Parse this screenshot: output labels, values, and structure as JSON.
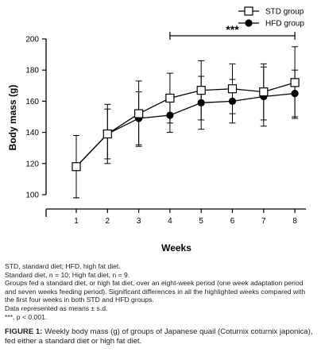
{
  "chart_data": {
    "type": "line",
    "x": [
      1,
      2,
      3,
      4,
      5,
      6,
      7,
      8
    ],
    "xlabel": "Weeks",
    "ylabel": "Body mass (g)",
    "ylim": [
      100,
      200
    ],
    "yticks": [
      100,
      120,
      140,
      160,
      180,
      200
    ],
    "xticks": [
      1,
      2,
      3,
      4,
      5,
      6,
      7,
      8
    ],
    "legend_position": "top-right",
    "grid": false,
    "series": [
      {
        "name": "STD group",
        "marker": "open-square",
        "values": [
          118,
          139,
          152,
          162,
          167,
          168,
          166,
          172
        ],
        "sd": [
          20,
          16,
          21,
          16,
          19,
          16,
          18,
          23
        ]
      },
      {
        "name": "HFD group",
        "marker": "filled-circle",
        "values": [
          118,
          139,
          149,
          151,
          159,
          160,
          163,
          165
        ],
        "sd": [
          20,
          19,
          17,
          11,
          17,
          14,
          19,
          15
        ]
      }
    ],
    "annotation": {
      "text": "***",
      "x_from": 4,
      "x_to": 8
    }
  },
  "notes": [
    "STD, standard diet; HFD, high fat diet.",
    "Standard diet, n = 10; High fat diet, n = 9.",
    "Groups fed a standard diet, or high fat diet, over an eight-week period (one week adaptation period and seven weeks feeding period). Significant differences in all the highlighted weeks compared with the first four weeks in both STD and HFD groups.",
    "Data represented as means ± s.d.",
    "***, p < 0.001."
  ],
  "caption": {
    "label": "FIGURE 1:",
    "text": "Weekly body mass (g) of groups of Japanese quail (Coturnix coturnix japonica), fed either a standard diet or high fat diet."
  }
}
